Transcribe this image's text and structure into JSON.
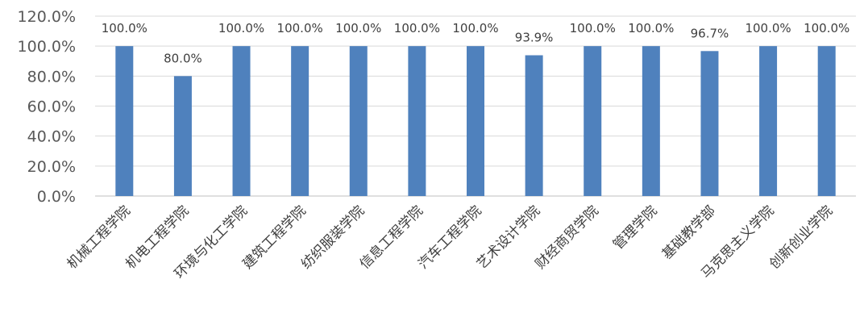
{
  "chart_data": {
    "type": "bar",
    "categories": [
      "机械工程学院",
      "机电工程学院",
      "环境与化工学院",
      "建筑工程学院",
      "纺织服装学院",
      "信息工程学院",
      "汽车工程学院",
      "艺术设计学院",
      "财经商贸学院",
      "管理学院",
      "基础教学部",
      "马克思主义学院",
      "创新创业学院"
    ],
    "values": [
      100.0,
      80.0,
      100.0,
      100.0,
      100.0,
      100.0,
      100.0,
      93.9,
      100.0,
      100.0,
      96.7,
      100.0,
      100.0
    ],
    "data_labels": [
      "100.0%",
      "80.0%",
      "100.0%",
      "100.0%",
      "100.0%",
      "100.0%",
      "100.0%",
      "93.9%",
      "100.0%",
      "100.0%",
      "96.7%",
      "100.0%",
      "100.0%"
    ],
    "y_ticks": [
      "0.0%",
      "20.0%",
      "40.0%",
      "60.0%",
      "80.0%",
      "100.0%",
      "120.0%"
    ],
    "ylim": [
      0,
      120
    ],
    "grid": true,
    "legend": "none",
    "title": "",
    "xlabel": "",
    "ylabel": "",
    "bar_color": "#4f81bd"
  }
}
